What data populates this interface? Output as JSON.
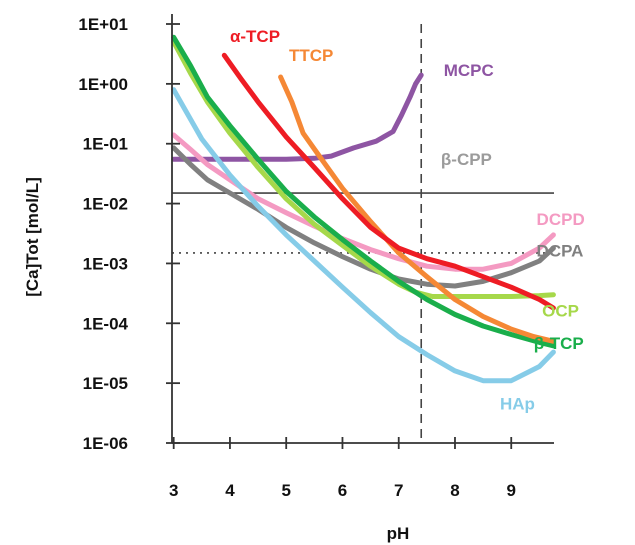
{
  "chart_data": {
    "type": "line",
    "xlabel": "pH",
    "ylabel": "[Ca]Tot  [mol/L]",
    "x_ticks": [
      "3",
      "4",
      "5",
      "6",
      "7",
      "8",
      "9"
    ],
    "y_ticks": [
      "1E-06",
      "1E-05",
      "1E-04",
      "1E-03",
      "1E-02",
      "1E-01",
      "1E+00",
      "1E+01"
    ],
    "xlim": [
      2.97,
      9.76
    ],
    "ylim": [
      1e-06,
      10
    ],
    "y_scale": "log",
    "grid": false,
    "reference_lines": [
      {
        "orientation": "vertical",
        "x": 7.4,
        "style": "dashed"
      },
      {
        "orientation": "horizontal",
        "y": 0.015,
        "style": "solid"
      },
      {
        "orientation": "horizontal",
        "y": 0.0015,
        "style": "dotted"
      }
    ],
    "series": [
      {
        "name": "MCPC",
        "color": "#8E55A3",
        "x": [
          3.0,
          3.5,
          4.0,
          5.0,
          5.5,
          5.8,
          6.2,
          6.6,
          6.9,
          7.05,
          7.2,
          7.3,
          7.4
        ],
        "y": [
          0.055,
          0.055,
          0.055,
          0.055,
          0.057,
          0.062,
          0.085,
          0.11,
          0.16,
          0.3,
          0.6,
          1.0,
          1.4
        ]
      },
      {
        "name": "α-TCP",
        "color": "#EE1C24",
        "x": [
          3.9,
          4.2,
          4.5,
          5.0,
          5.5,
          6.0,
          6.5,
          7.0,
          7.5,
          8.0,
          8.5,
          9.0,
          9.5,
          9.75
        ],
        "y": [
          3.0,
          1.2,
          0.5,
          0.13,
          0.04,
          0.012,
          0.004,
          0.0018,
          0.0012,
          0.0009,
          0.0006,
          0.0004,
          0.00025,
          0.00018
        ]
      },
      {
        "name": "TTCP",
        "color": "#F58835",
        "x": [
          4.9,
          5.1,
          5.3,
          5.6,
          6.0,
          6.5,
          7.0,
          7.5,
          8.0,
          8.5,
          9.0,
          9.4,
          9.75
        ],
        "y": [
          1.3,
          0.5,
          0.15,
          0.06,
          0.018,
          0.005,
          0.0015,
          0.0006,
          0.00025,
          0.00013,
          8e-05,
          6e-05,
          5e-05
        ]
      },
      {
        "name": "β-CPP",
        "color": "#9B9B9B",
        "x": [],
        "y": []
      },
      {
        "name": "DCPD",
        "color": "#F49AC2",
        "x": [
          3.0,
          3.3,
          3.6,
          4.0,
          4.5,
          5.0,
          5.5,
          6.0,
          6.5,
          7.0,
          7.5,
          8.0,
          8.5,
          9.0,
          9.5,
          9.75
        ],
        "y": [
          0.14,
          0.08,
          0.045,
          0.025,
          0.012,
          0.007,
          0.0042,
          0.0026,
          0.0017,
          0.0012,
          0.0009,
          0.0008,
          0.0008,
          0.001,
          0.0018,
          0.003
        ]
      },
      {
        "name": "DCPA",
        "color": "#808080",
        "x": [
          3.0,
          3.3,
          3.6,
          4.0,
          4.5,
          5.0,
          5.5,
          6.0,
          6.5,
          7.0,
          7.5,
          8.0,
          8.5,
          9.0,
          9.5,
          9.75
        ],
        "y": [
          0.085,
          0.045,
          0.025,
          0.015,
          0.008,
          0.004,
          0.0022,
          0.0013,
          0.0008,
          0.00055,
          0.00045,
          0.00042,
          0.0005,
          0.0007,
          0.0011,
          0.0018
        ]
      },
      {
        "name": "OCP",
        "color": "#A6D84A",
        "x": [
          3.0,
          3.3,
          3.6,
          4.0,
          4.5,
          5.0,
          5.5,
          6.0,
          6.5,
          7.0,
          7.3,
          7.6,
          8.0,
          8.5,
          9.0,
          9.5,
          9.75
        ],
        "y": [
          5.0,
          1.5,
          0.5,
          0.15,
          0.04,
          0.012,
          0.0045,
          0.002,
          0.0009,
          0.00045,
          0.00033,
          0.00028,
          0.00028,
          0.00028,
          0.00028,
          0.00029,
          0.0003
        ]
      },
      {
        "name": "β-TCP",
        "color": "#1AAE4B",
        "x": [
          3.0,
          3.3,
          3.6,
          4.0,
          4.5,
          5.0,
          5.5,
          6.0,
          6.5,
          7.0,
          7.5,
          8.0,
          8.5,
          9.0,
          9.5,
          9.75
        ],
        "y": [
          6.0,
          2.0,
          0.6,
          0.2,
          0.055,
          0.016,
          0.006,
          0.0025,
          0.0011,
          0.0005,
          0.00025,
          0.00014,
          9e-05,
          6.5e-05,
          4.8e-05,
          4.2e-05
        ]
      },
      {
        "name": "HAp",
        "color": "#86CCE8",
        "x": [
          3.0,
          3.5,
          4.0,
          4.5,
          5.0,
          5.5,
          6.0,
          6.5,
          7.0,
          7.5,
          8.0,
          8.5,
          9.0,
          9.5,
          9.75
        ],
        "y": [
          0.8,
          0.12,
          0.03,
          0.009,
          0.003,
          0.0011,
          0.0004,
          0.00015,
          6e-05,
          3e-05,
          1.6e-05,
          1.1e-05,
          1.1e-05,
          1.9e-05,
          3.3e-05
        ]
      }
    ],
    "series_label_positions": [
      "top-right",
      "top-center",
      "top-center",
      "right",
      "right",
      "right",
      "right",
      "right",
      "bottom-right"
    ]
  }
}
